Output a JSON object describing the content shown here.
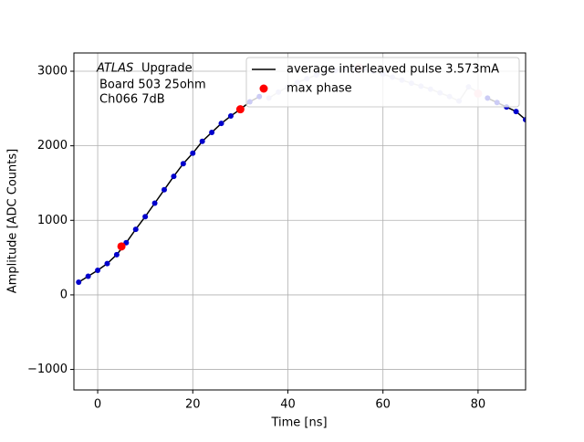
{
  "chart_data": {
    "type": "scatter",
    "x_label": "Time [ns]",
    "y_label": "Amplitude [ADC Counts]",
    "annotations": [
      "ATLAS",
      "Upgrade",
      "Board 503 25ohm",
      "Ch066 7dB"
    ],
    "xlim": [
      -5,
      90
    ],
    "ylim": [
      -1275,
      3245
    ],
    "xticks": [
      0,
      20,
      40,
      60,
      80
    ],
    "yticks": [
      {
        "value": -1000,
        "label": "−1000"
      },
      0,
      1000,
      2000,
      3000
    ],
    "grid": true,
    "legend": "upper right",
    "series": [
      {
        "name": "average interleaved pulse 3.573mA",
        "color": "#0000cc",
        "line_color": "#000000",
        "x": [
          -4,
          -2,
          0,
          2,
          4,
          6,
          8,
          10,
          12,
          14,
          16,
          18,
          20,
          22,
          24,
          26,
          28,
          30,
          32,
          34,
          36,
          38,
          40,
          42,
          44,
          46,
          48,
          50,
          52,
          54,
          56,
          58,
          60,
          62,
          64,
          66,
          68,
          70,
          72,
          74,
          76,
          78,
          80,
          82,
          84,
          86,
          88,
          90
        ],
        "values": [
          170,
          250,
          330,
          420,
          540,
          700,
          880,
          1050,
          1230,
          1410,
          1590,
          1760,
          1900,
          2060,
          2180,
          2300,
          2400,
          2490,
          2590,
          2660,
          null,
          null,
          null,
          null,
          null,
          null,
          null,
          null,
          null,
          null,
          null,
          null,
          null,
          null,
          null,
          null,
          null,
          null,
          null,
          null,
          null,
          null,
          null,
          2640,
          2580,
          2520,
          2460,
          2350
        ]
      },
      {
        "color": "#c8c8f0",
        "line_color": "#c8c8c8",
        "x": [
          -4,
          -2,
          0,
          2,
          4,
          6,
          8,
          10,
          12,
          14,
          16,
          18,
          20,
          22,
          24,
          26,
          28,
          30,
          32,
          34,
          36,
          38,
          40,
          42,
          44,
          46,
          48,
          50,
          52,
          54,
          56,
          58,
          60,
          62,
          64,
          66,
          68,
          70,
          72,
          74,
          76,
          78,
          80,
          82,
          84,
          86,
          88,
          90
        ],
        "values": [
          null,
          null,
          null,
          null,
          null,
          null,
          null,
          null,
          null,
          null,
          null,
          null,
          null,
          null,
          null,
          null,
          null,
          null,
          null,
          null,
          2640,
          2720,
          2790,
          2850,
          2900,
          2950,
          2990,
          3010,
          3030,
          3040,
          3030,
          3000,
          2960,
          2920,
          2880,
          2840,
          2800,
          2760,
          2710,
          2660,
          2600,
          2790,
          2720,
          null,
          null,
          null,
          null,
          null
        ]
      },
      {
        "name": "max phase",
        "color": "#ff0000",
        "x": [
          5,
          30
        ],
        "values": [
          650,
          2490
        ]
      },
      {
        "color": "#ffc0cb",
        "x": [
          55,
          80
        ],
        "values": [
          3050,
          2700
        ]
      }
    ]
  }
}
